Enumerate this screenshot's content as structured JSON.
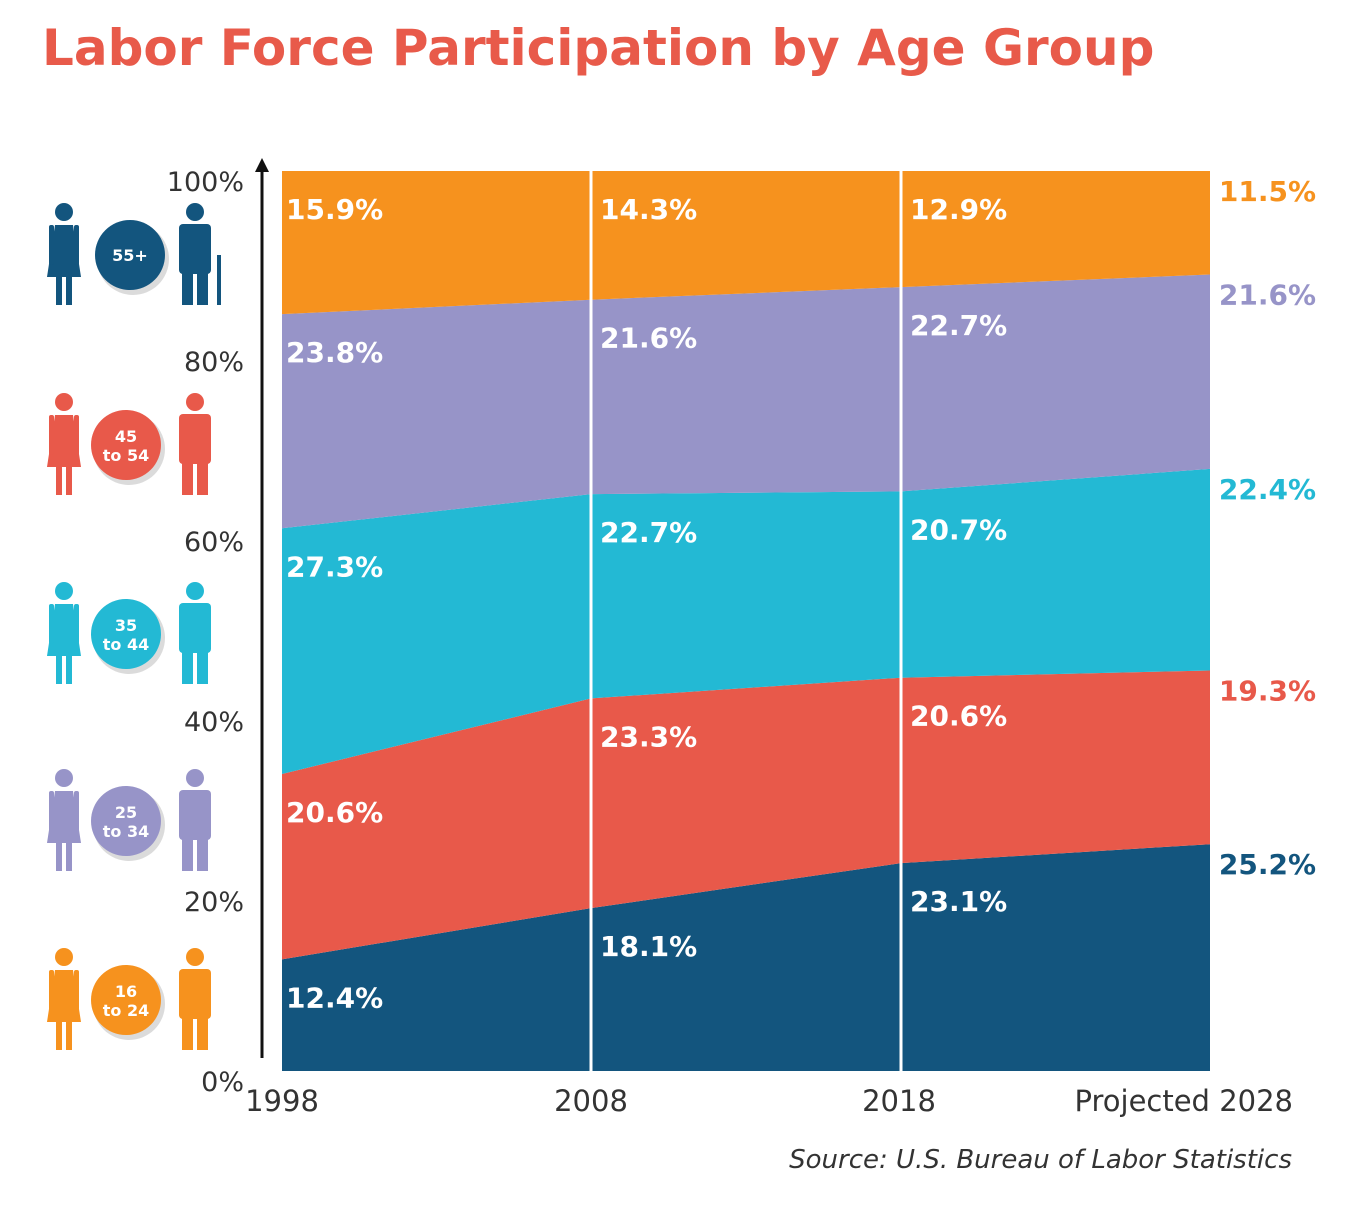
{
  "title": "Labor Force Participation by Age Group",
  "source": "Source: U.S. Bureau of Labor Statistics",
  "colors": {
    "title": "#e85a4a",
    "divider": "#ffffff",
    "axis": "#111111"
  },
  "chart_data": {
    "type": "area",
    "stacked": true,
    "x": [
      "1998",
      "2008",
      "2018",
      "Projected 2028"
    ],
    "ylim": [
      0,
      100
    ],
    "yticks": [
      "0%",
      "20%",
      "40%",
      "60%",
      "80%",
      "100%"
    ],
    "series": [
      {
        "name": "55+",
        "badge": [
          "55+"
        ],
        "color": "#13557e",
        "values": [
          12.4,
          18.1,
          23.1,
          25.2
        ],
        "labels": [
          "12.4%",
          "18.1%",
          "23.1%",
          "25.2%"
        ]
      },
      {
        "name": "45 to 54",
        "badge": [
          "45",
          "to 54"
        ],
        "color": "#e8594a",
        "values": [
          20.6,
          23.3,
          20.6,
          19.3
        ],
        "labels": [
          "20.6%",
          "23.3%",
          "20.6%",
          "19.3%"
        ]
      },
      {
        "name": "35 to 44",
        "badge": [
          "35",
          "to 44"
        ],
        "color": "#23b9d4",
        "values": [
          27.3,
          22.7,
          20.7,
          22.4
        ],
        "labels": [
          "27.3%",
          "22.7%",
          "20.7%",
          "22.4%"
        ]
      },
      {
        "name": "25 to 34",
        "badge": [
          "25",
          "to 34"
        ],
        "color": "#9794c8",
        "values": [
          23.8,
          21.6,
          22.7,
          21.6
        ],
        "labels": [
          "23.8%",
          "21.6%",
          "22.7%",
          "21.6%"
        ]
      },
      {
        "name": "16 to 24",
        "badge": [
          "16",
          "to 24"
        ],
        "color": "#f6921e",
        "values": [
          15.9,
          14.3,
          12.9,
          11.5
        ],
        "labels": [
          "15.9%",
          "14.3%",
          "12.9%",
          "11.5%"
        ]
      }
    ]
  }
}
